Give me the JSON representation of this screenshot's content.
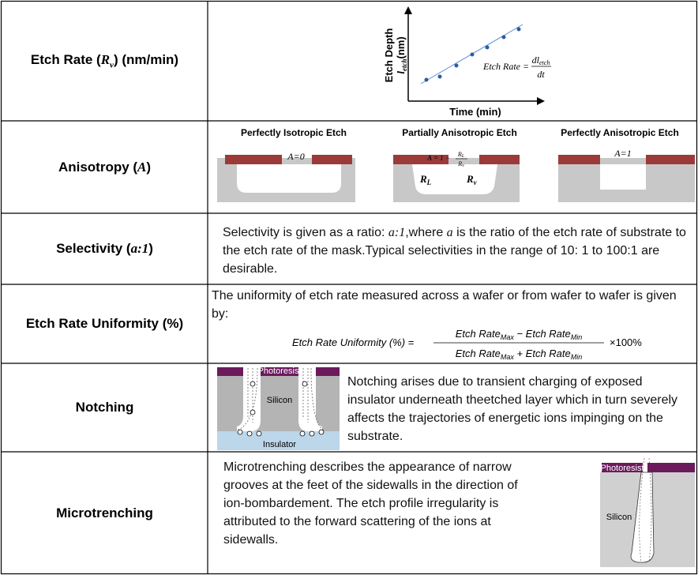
{
  "table": {
    "rows": [
      {
        "label": {
          "text": "Etch Rate (",
          "symbol": "R",
          "subscript": "v",
          "tail": ") (nm/min)"
        },
        "graph": {
          "y_label": "Etch Depth",
          "y_symbol": "l",
          "y_subscript": "etch",
          "y_unit": "(nm)",
          "x_label": "Time (min)",
          "formula_lhs": "Etch Rate =",
          "numerator": "dl",
          "numerator_subscript": "etch",
          "denominator": "dt"
        }
      },
      {
        "label": {
          "text": "Anisotropy (",
          "symbol": "A",
          "tail": ")"
        },
        "panels": [
          {
            "title": "Perfectly Isotropic Etch",
            "formula": "A=0"
          },
          {
            "title": "Partially Anisotropic Etch",
            "formula": "A = 1 −",
            "numerator": "R",
            "numerator_subscript": "L",
            "denominator": "R",
            "denominator_subscript": "v",
            "lateral": "R",
            "lateral_subscript": "L",
            "vertical": "R",
            "vertical_subscript": "v"
          },
          {
            "title": "Perfectly Anisotropic Etch",
            "formula": "A=1"
          }
        ]
      },
      {
        "label": {
          "text": "Selectivity (",
          "symbol": "a:1",
          "tail": ")"
        },
        "description": [
          "Selectivity is given as a ratio: ",
          "a:1",
          ",where ",
          "a",
          " is the ratio of the etch rate of substrate to the etch rate of the mask.Typical selectivities in the range of 10: 1 to 100:1 are desirable."
        ]
      },
      {
        "label": {
          "text": "Etch Rate Uniformity (%)"
        },
        "description": "The uniformity of etch rate measured across a wafer or from wafer to wafer is given by:",
        "formula": {
          "lhs": "Etch Rate Uniformity (%) =",
          "numerator": [
            "Etch Rate",
            "Max",
            " − Etch Rate",
            "Min"
          ],
          "denominator": [
            "Etch Rate",
            "Max",
            " + Etch Rate",
            "Min"
          ],
          "factor": "×100%"
        }
      },
      {
        "label": {
          "text": "Notching"
        },
        "figure": {
          "resist": "Photoresist",
          "substrate": "Silicon",
          "insulator": "Insulator"
        },
        "description": "Notching arises due to transient charging of exposed insulator  underneath theetched layer which in turn severely affects the trajectories of energetic ions impinging on the substrate."
      },
      {
        "label": {
          "text": "Microtrenching"
        },
        "description": "Microtrenching describes the appearance of narrow grooves at the feet of the sidewalls in the direction of ion-bombardement. The etch profile irregularity is attributed to the forward scattering of the ions at sidewalls.",
        "figure": {
          "resist": "Photoresist",
          "substrate": "Silicon"
        }
      }
    ]
  }
}
